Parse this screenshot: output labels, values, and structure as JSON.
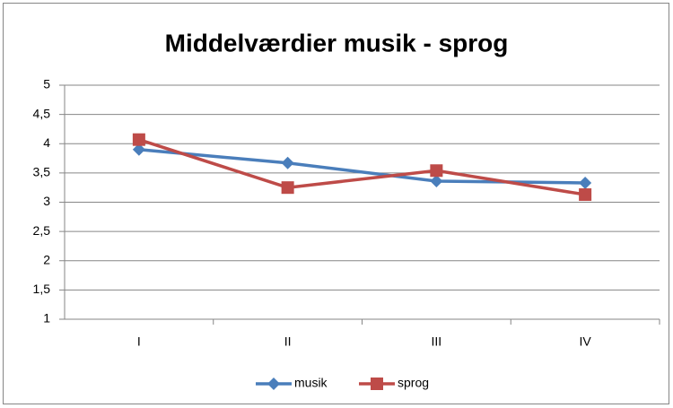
{
  "chart_data": {
    "type": "line",
    "title": "Middelværdier musik - sprog",
    "categories": [
      "I",
      "II",
      "III",
      "IV"
    ],
    "series": [
      {
        "name": "musik",
        "color": "#4a7ebb",
        "marker": "diamond",
        "values": [
          3.9,
          3.67,
          3.36,
          3.33
        ]
      },
      {
        "name": "sprog",
        "color": "#be4b48",
        "marker": "square",
        "values": [
          4.07,
          3.25,
          3.54,
          3.13
        ]
      }
    ],
    "ylim": [
      1,
      5
    ],
    "yticks": [
      1,
      {
        "value": 1.5,
        "label": "1,5"
      },
      2,
      {
        "value": 2.5,
        "label": "2,5"
      },
      3,
      {
        "value": 3.5,
        "label": "3,5"
      },
      4,
      {
        "value": 4.5,
        "label": "4,5"
      },
      5
    ],
    "grid": true,
    "legend": "bottom"
  }
}
